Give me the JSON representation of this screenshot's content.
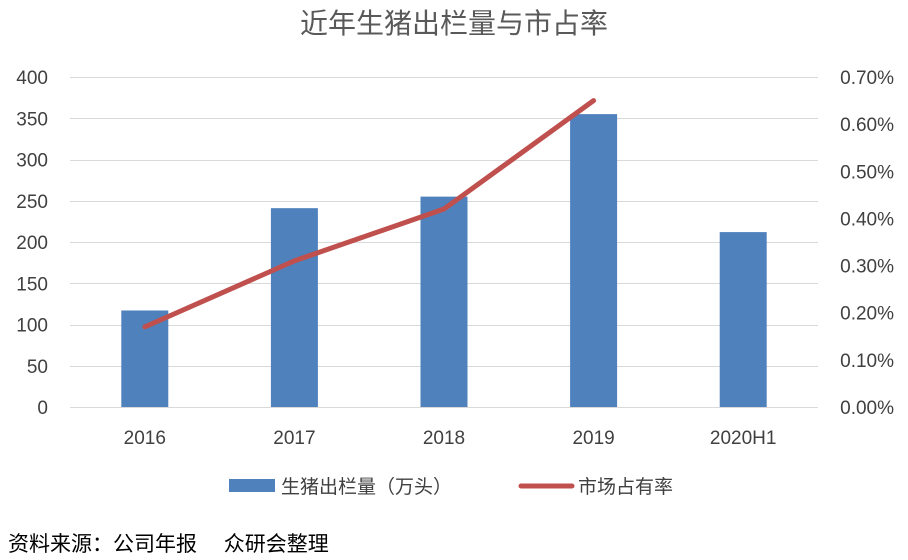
{
  "chart_data": {
    "type": "bar",
    "title": "近年生猪出栏量与市占率",
    "categories": [
      "2016",
      "2017",
      "2018",
      "2019",
      "2020H1"
    ],
    "series": [
      {
        "name": "生猪出栏量（万头）",
        "type": "bar",
        "axis": "left",
        "values": [
          117,
          241,
          255,
          355,
          212
        ]
      },
      {
        "name": "市场占有率",
        "type": "line",
        "axis": "right",
        "values": [
          0.17,
          0.31,
          0.42,
          0.65,
          null
        ]
      }
    ],
    "y_left": {
      "min": 0,
      "max": 400,
      "step": 50,
      "tick_labels": [
        "0",
        "50",
        "100",
        "150",
        "200",
        "250",
        "300",
        "350",
        "400"
      ]
    },
    "y_right": {
      "min": 0,
      "max": 0.7,
      "step": 0.1,
      "tick_labels": [
        "0.00%",
        "0.10%",
        "0.20%",
        "0.30%",
        "0.40%",
        "0.50%",
        "0.60%",
        "0.70%"
      ]
    },
    "grid": true,
    "legend": "bottom",
    "colors": {
      "bar": "#4f81bd",
      "line": "#c0504d",
      "grid": "#d9d9d9"
    }
  },
  "source": "资料来源：公司年报    众研会整理"
}
